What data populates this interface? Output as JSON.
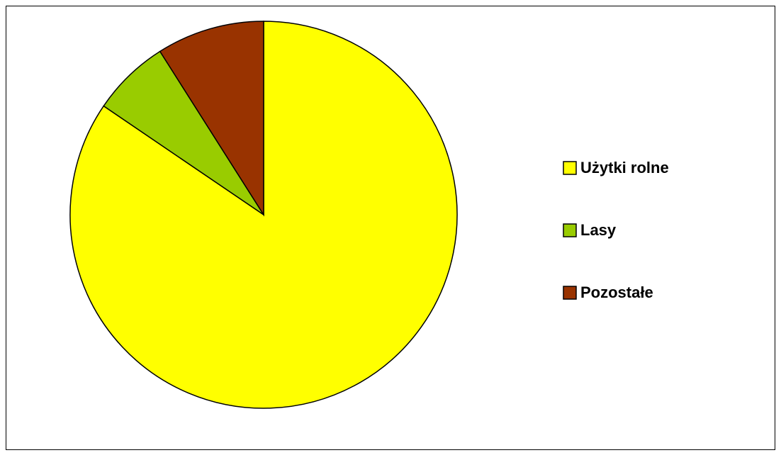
{
  "chart_data": {
    "type": "pie",
    "categories": [
      "Użytki rolne",
      "Lasy",
      "Pozostałe"
    ],
    "values": [
      84.5,
      6.5,
      9
    ],
    "colors": [
      "#ffff00",
      "#99cc00",
      "#993300"
    ],
    "legend": "right"
  }
}
